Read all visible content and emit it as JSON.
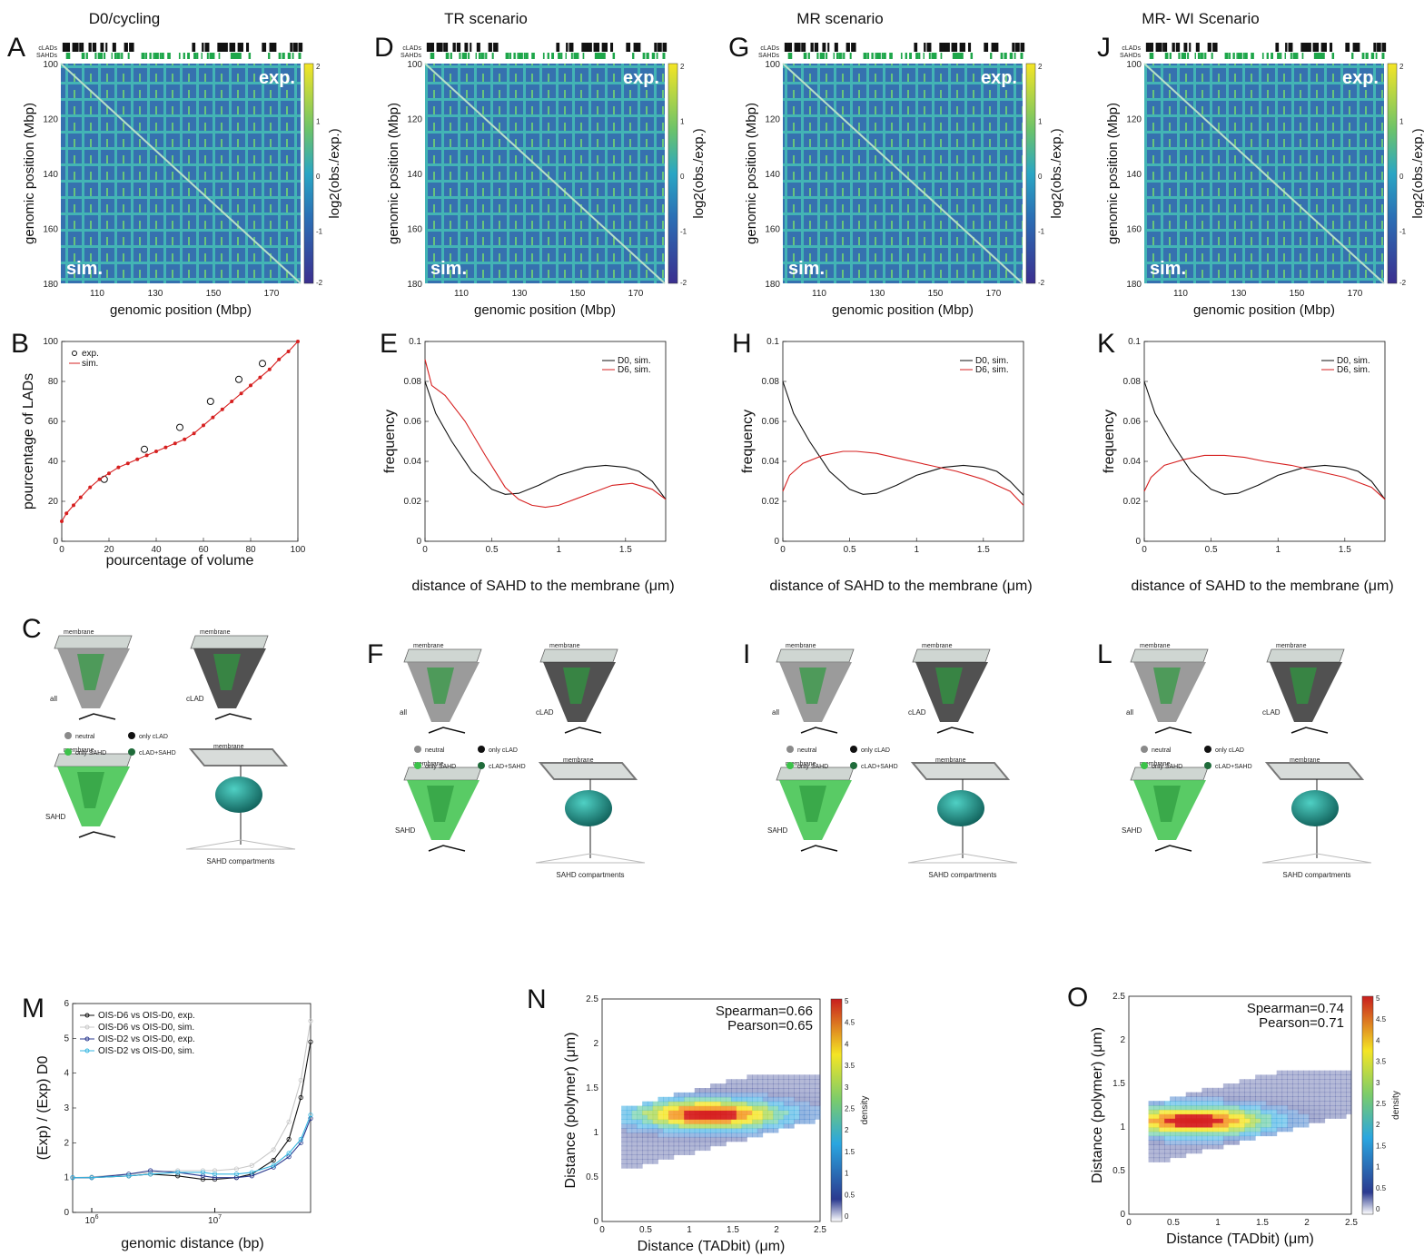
{
  "column_titles": [
    "D0/cycling",
    "TR scenario",
    "MR scenario",
    "MR- WI Scenario"
  ],
  "panel_letters": [
    "A",
    "B",
    "C",
    "D",
    "E",
    "F",
    "G",
    "H",
    "I",
    "J",
    "K",
    "L",
    "M",
    "N",
    "O"
  ],
  "heatmaps": {
    "track_labels": [
      "cLADs",
      "SAHDs"
    ],
    "tag_exp": "exp.",
    "tag_sim": "sim.",
    "xlabel": "genomic position (Mbp)",
    "ylabel": "genomic position (Mbp)",
    "xticks": [
      "110",
      "130",
      "150",
      "170"
    ],
    "yticks": [
      "100",
      "120",
      "140",
      "160",
      "180"
    ],
    "colorbar_label": "log2(obs./exp.)",
    "colorbar_ticks": [
      "2",
      "1",
      "0",
      "-1",
      "-2"
    ],
    "colors": {
      "low": "#3b2f8f",
      "mid": "#2aa6c4",
      "midhigh": "#6cc36a",
      "high": "#f4e525"
    }
  },
  "panel_B": {
    "chart_data": {
      "type": "line",
      "xlabel": "pourcentage of volume",
      "ylabel": "pourcentage of LADs",
      "xlim": [
        0,
        100
      ],
      "ylim": [
        0,
        100
      ],
      "xticks": [
        0,
        20,
        40,
        60,
        80,
        100
      ],
      "yticks": [
        0,
        20,
        40,
        60,
        80,
        100
      ],
      "series": [
        {
          "name": "exp.",
          "marker": "circle",
          "color": "#111111",
          "x": [
            18,
            35,
            50,
            63,
            75,
            85
          ],
          "y": [
            31,
            46,
            57,
            70,
            81,
            89
          ]
        },
        {
          "name": "sim.",
          "marker": "dot",
          "color": "#d62020",
          "x": [
            0,
            2,
            5,
            8,
            12,
            16,
            20,
            24,
            28,
            32,
            36,
            40,
            44,
            48,
            52,
            56,
            60,
            64,
            68,
            72,
            76,
            80,
            84,
            88,
            92,
            96,
            100
          ],
          "y": [
            10,
            14,
            18,
            22,
            27,
            31,
            34,
            37,
            39,
            41,
            43,
            45,
            47,
            49,
            51,
            54,
            58,
            62,
            66,
            70,
            74,
            78,
            82,
            86,
            91,
            95,
            100
          ]
        }
      ]
    }
  },
  "distance_panels": [
    {
      "key": "E",
      "chart_data": {
        "type": "line",
        "xlabel": "distance of SAHD to the membrane (μm)",
        "ylabel": "frequency",
        "xlim": [
          0,
          1.8
        ],
        "ylim": [
          0,
          0.1
        ],
        "xticks": [
          "0",
          "0.5",
          "1",
          "1.5"
        ],
        "yticks": [
          "0",
          "0.02",
          "0.04",
          "0.06",
          "0.08",
          "0.1"
        ],
        "series": [
          {
            "name": "D0, sim.",
            "color": "#111111",
            "x": [
              0,
              0.08,
              0.2,
              0.35,
              0.5,
              0.6,
              0.7,
              0.85,
              1.0,
              1.2,
              1.35,
              1.5,
              1.6,
              1.7,
              1.8
            ],
            "y": [
              0.08,
              0.064,
              0.05,
              0.035,
              0.026,
              0.0235,
              0.024,
              0.028,
              0.033,
              0.037,
              0.038,
              0.037,
              0.035,
              0.03,
              0.021
            ]
          },
          {
            "name": "D6, sim.",
            "color": "#d62020",
            "x": [
              0,
              0.05,
              0.15,
              0.3,
              0.45,
              0.6,
              0.7,
              0.8,
              0.9,
              1.0,
              1.2,
              1.4,
              1.55,
              1.7,
              1.8
            ],
            "y": [
              0.091,
              0.078,
              0.073,
              0.06,
              0.043,
              0.027,
              0.021,
              0.018,
              0.017,
              0.018,
              0.023,
              0.028,
              0.029,
              0.026,
              0.021
            ]
          }
        ]
      }
    },
    {
      "key": "H",
      "chart_data": {
        "type": "line",
        "xlabel": "distance of SAHD to the membrane (μm)",
        "ylabel": "frequency",
        "xlim": [
          0,
          1.8
        ],
        "ylim": [
          0,
          0.1
        ],
        "xticks": [
          "0",
          "0.5",
          "1",
          "1.5"
        ],
        "yticks": [
          "0",
          "0.02",
          "0.04",
          "0.06",
          "0.08",
          "0.1"
        ],
        "series": [
          {
            "name": "D0, sim.",
            "color": "#111111",
            "x": [
              0,
              0.08,
              0.2,
              0.35,
              0.5,
              0.6,
              0.7,
              0.85,
              1.0,
              1.2,
              1.35,
              1.5,
              1.6,
              1.7,
              1.8
            ],
            "y": [
              0.08,
              0.064,
              0.05,
              0.035,
              0.026,
              0.0235,
              0.024,
              0.028,
              0.033,
              0.037,
              0.038,
              0.037,
              0.035,
              0.03,
              0.023
            ]
          },
          {
            "name": "D6, sim.",
            "color": "#d62020",
            "x": [
              0,
              0.05,
              0.15,
              0.3,
              0.45,
              0.55,
              0.7,
              0.9,
              1.1,
              1.3,
              1.5,
              1.7,
              1.8
            ],
            "y": [
              0.025,
              0.033,
              0.039,
              0.043,
              0.045,
              0.045,
              0.044,
              0.041,
              0.038,
              0.035,
              0.031,
              0.025,
              0.018
            ]
          }
        ]
      }
    },
    {
      "key": "K",
      "chart_data": {
        "type": "line",
        "xlabel": "distance of SAHD to the membrane (μm)",
        "ylabel": "frequency",
        "xlim": [
          0,
          1.8
        ],
        "ylim": [
          0,
          0.1
        ],
        "xticks": [
          "0",
          "0.5",
          "1",
          "1.5"
        ],
        "yticks": [
          "0",
          "0.02",
          "0.04",
          "0.06",
          "0.08",
          "0.1"
        ],
        "series": [
          {
            "name": "D0, sim.",
            "color": "#111111",
            "x": [
              0,
              0.08,
              0.2,
              0.35,
              0.5,
              0.6,
              0.7,
              0.85,
              1.0,
              1.2,
              1.35,
              1.5,
              1.6,
              1.7,
              1.8
            ],
            "y": [
              0.08,
              0.064,
              0.05,
              0.035,
              0.026,
              0.0235,
              0.024,
              0.028,
              0.033,
              0.037,
              0.038,
              0.037,
              0.035,
              0.03,
              0.021
            ]
          },
          {
            "name": "D6, sim.",
            "color": "#d62020",
            "x": [
              0,
              0.05,
              0.15,
              0.3,
              0.45,
              0.6,
              0.75,
              0.9,
              1.1,
              1.3,
              1.5,
              1.7,
              1.8
            ],
            "y": [
              0.025,
              0.032,
              0.038,
              0.041,
              0.043,
              0.043,
              0.042,
              0.04,
              0.038,
              0.035,
              0.032,
              0.027,
              0.021
            ]
          }
        ]
      }
    }
  ],
  "structures": {
    "membrane_label": "membrane",
    "labels_all": "all",
    "labels_clad": "cLAD",
    "labels_sahd": "SAHD",
    "compartments_label": "SAHD compartments",
    "legend": [
      "neutral",
      "only cLAD",
      "only SAHD",
      "cLAD+SAHD"
    ],
    "legend_colors": [
      "#8a8a8a",
      "#111111",
      "#3cc24a",
      "#1f6b3a"
    ],
    "blob_color": "#1a8a82"
  },
  "panel_M": {
    "chart_data": {
      "type": "line",
      "xlabel": "genomic distance (bp)",
      "ylabel": "(Exp) / (Exp) D0",
      "xscale": "log",
      "xlim": [
        700000,
        60000000
      ],
      "ylim": [
        0,
        6
      ],
      "yticks": [
        "0",
        "1",
        "2",
        "3",
        "4",
        "5",
        "6"
      ],
      "xticks": [
        "10^6",
        "10^7"
      ],
      "series": [
        {
          "name": "OIS-D6 vs OIS-D0, exp.",
          "color": "#111111",
          "x": [
            700000,
            1000000,
            2000000,
            3000000,
            5000000,
            8000000,
            10000000,
            15000000,
            20000000,
            30000000,
            40000000,
            50000000,
            60000000
          ],
          "y": [
            1.0,
            1.0,
            1.05,
            1.1,
            1.05,
            0.95,
            0.95,
            1.0,
            1.1,
            1.5,
            2.1,
            3.3,
            4.9
          ]
        },
        {
          "name": "OIS-D6 vs OIS-D0, sim.",
          "color": "#c8c8c8",
          "x": [
            700000,
            1000000,
            2000000,
            3000000,
            5000000,
            8000000,
            10000000,
            15000000,
            20000000,
            30000000,
            40000000,
            50000000,
            60000000
          ],
          "y": [
            1.0,
            1.02,
            1.1,
            1.15,
            1.2,
            1.2,
            1.2,
            1.25,
            1.35,
            1.8,
            2.6,
            3.8,
            5.5
          ]
        },
        {
          "name": "OIS-D2 vs OIS-D0, exp.",
          "color": "#2b3a8f",
          "x": [
            700000,
            1000000,
            2000000,
            3000000,
            5000000,
            8000000,
            10000000,
            15000000,
            20000000,
            30000000,
            40000000,
            50000000,
            60000000
          ],
          "y": [
            1.0,
            1.0,
            1.1,
            1.2,
            1.15,
            1.05,
            1.0,
            1.0,
            1.05,
            1.3,
            1.6,
            2.0,
            2.7
          ]
        },
        {
          "name": "OIS-D2 vs OIS-D0, sim.",
          "color": "#35b6e0",
          "x": [
            700000,
            1000000,
            2000000,
            3000000,
            5000000,
            8000000,
            10000000,
            15000000,
            20000000,
            30000000,
            40000000,
            50000000,
            60000000
          ],
          "y": [
            1.0,
            1.0,
            1.05,
            1.1,
            1.15,
            1.15,
            1.1,
            1.1,
            1.15,
            1.35,
            1.7,
            2.1,
            2.8
          ]
        }
      ]
    }
  },
  "scatter_panels": [
    {
      "key": "N",
      "chart_data": {
        "type": "heatmap",
        "xlabel": "Distance (TADbit) (μm)",
        "ylabel": "Distance (polymer) (μm)",
        "xlim": [
          0,
          2.5
        ],
        "ylim": [
          0,
          2.5
        ],
        "xticks": [
          "0",
          "0.5",
          "1",
          "1.5",
          "2",
          "2.5"
        ],
        "yticks": [
          "0",
          "0.5",
          "1",
          "1.5",
          "2",
          "2.5"
        ],
        "colorbar_label": "density",
        "colorbar_ticks": [
          "5",
          "4.5",
          "4",
          "3.5",
          "3",
          "2.5",
          "2",
          "1.5",
          "1",
          "0.5",
          "0"
        ],
        "annotations": [
          "Spearman=0.66",
          "Pearson=0.65"
        ]
      }
    },
    {
      "key": "O",
      "chart_data": {
        "type": "heatmap",
        "xlabel": "Distance (TADbit) (μm)",
        "ylabel": "Distance (polymer) (μm)",
        "xlim": [
          0,
          2.5
        ],
        "ylim": [
          0,
          2.5
        ],
        "xticks": [
          "0",
          "0.5",
          "1",
          "1.5",
          "2",
          "2.5"
        ],
        "yticks": [
          "0",
          "0.5",
          "1",
          "1.5",
          "2",
          "2.5"
        ],
        "colorbar_label": "density",
        "colorbar_ticks": [
          "5",
          "4.5",
          "4",
          "3.5",
          "3",
          "2.5",
          "2",
          "1.5",
          "1",
          "0.5",
          "0"
        ],
        "annotations": [
          "Spearman=0.74",
          "Pearson=0.71"
        ]
      }
    }
  ]
}
